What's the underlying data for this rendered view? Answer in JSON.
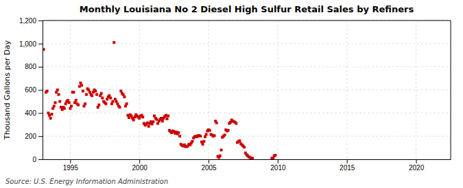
{
  "chart_data": {
    "type": "scatter",
    "title": "Monthly Louisiana No 2 Diesel High Sulfur Retail Sales by Refiners",
    "ylabel": "Thousand Gallons per Day",
    "annotations": [
      "Source: U.S. Energy Information Administration"
    ],
    "color": "#cc0000",
    "marker": "square",
    "grid": true,
    "xlim": [
      1993.0,
      2022.5
    ],
    "ylim": [
      0,
      1200
    ],
    "xticks": [
      1995,
      2000,
      2005,
      2010,
      2015,
      2020
    ],
    "yticks": [
      0,
      200,
      400,
      600,
      800,
      {
        "value": 1000,
        "label": "1,000"
      },
      {
        "value": 1200,
        "label": "1,200"
      }
    ],
    "x": [
      1993.08,
      1993.25,
      1993.33,
      1993.42,
      1993.5,
      1993.58,
      1993.67,
      1993.75,
      1993.83,
      1993.92,
      1994.0,
      1994.08,
      1994.17,
      1994.25,
      1994.33,
      1994.42,
      1994.5,
      1994.58,
      1994.67,
      1994.75,
      1994.83,
      1994.92,
      1995.0,
      1995.08,
      1995.17,
      1995.25,
      1995.33,
      1995.42,
      1995.5,
      1995.58,
      1995.67,
      1995.75,
      1995.83,
      1995.92,
      1996.0,
      1996.08,
      1996.17,
      1996.25,
      1996.33,
      1996.42,
      1996.5,
      1996.58,
      1996.67,
      1996.75,
      1996.83,
      1996.92,
      1997.0,
      1997.08,
      1997.17,
      1997.25,
      1997.33,
      1997.42,
      1997.5,
      1997.58,
      1997.67,
      1997.75,
      1997.83,
      1997.92,
      1998.0,
      1998.08,
      1998.17,
      1998.25,
      1998.33,
      1998.42,
      1998.5,
      1998.58,
      1998.67,
      1998.75,
      1998.83,
      1998.92,
      1999.0,
      1999.08,
      1999.17,
      1999.25,
      1999.33,
      1999.42,
      1999.5,
      1999.58,
      1999.67,
      1999.75,
      1999.83,
      1999.92,
      2000.0,
      2000.08,
      2000.17,
      2000.25,
      2000.33,
      2000.42,
      2000.5,
      2000.58,
      2000.67,
      2000.75,
      2000.83,
      2000.92,
      2001.0,
      2001.08,
      2001.17,
      2001.25,
      2001.33,
      2001.42,
      2001.5,
      2001.58,
      2001.67,
      2001.75,
      2001.83,
      2001.92,
      2002.0,
      2002.08,
      2002.17,
      2002.25,
      2002.33,
      2002.42,
      2002.5,
      2002.58,
      2002.67,
      2002.75,
      2002.83,
      2002.92,
      2003.0,
      2003.08,
      2003.17,
      2003.25,
      2003.33,
      2003.42,
      2003.5,
      2003.58,
      2003.67,
      2003.75,
      2003.83,
      2003.92,
      2004.0,
      2004.08,
      2004.17,
      2004.25,
      2004.33,
      2004.42,
      2004.5,
      2004.58,
      2004.67,
      2004.75,
      2004.83,
      2004.92,
      2005.0,
      2005.08,
      2005.17,
      2005.25,
      2005.33,
      2005.42,
      2005.5,
      2005.58,
      2005.67,
      2005.75,
      2005.83,
      2005.92,
      2006.0,
      2006.08,
      2006.17,
      2006.25,
      2006.33,
      2006.42,
      2006.5,
      2006.58,
      2006.67,
      2006.75,
      2006.83,
      2006.92,
      2007.0,
      2007.08,
      2007.17,
      2007.25,
      2007.33,
      2007.42,
      2007.5,
      2007.58,
      2007.67,
      2007.75,
      2007.83,
      2007.92,
      2008.0,
      2008.08,
      2008.17,
      2009.58,
      2009.67,
      2009.75,
      2009.83
    ],
    "values": [
      950,
      580,
      590,
      400,
      380,
      355,
      390,
      440,
      460,
      490,
      580,
      600,
      560,
      500,
      450,
      430,
      450,
      440,
      480,
      500,
      510,
      490,
      440,
      460,
      580,
      580,
      490,
      510,
      480,
      470,
      630,
      660,
      640,
      590,
      460,
      480,
      560,
      610,
      600,
      580,
      560,
      550,
      580,
      600,
      590,
      560,
      450,
      470,
      550,
      570,
      530,
      500,
      490,
      480,
      520,
      540,
      550,
      530,
      480,
      500,
      1010,
      520,
      500,
      480,
      460,
      450,
      590,
      570,
      560,
      540,
      460,
      480,
      380,
      360,
      385,
      375,
      355,
      340,
      365,
      385,
      375,
      365,
      355,
      375,
      380,
      365,
      310,
      295,
      305,
      315,
      285,
      310,
      325,
      305,
      325,
      375,
      355,
      345,
      310,
      330,
      345,
      355,
      330,
      355,
      370,
      380,
      350,
      375,
      250,
      240,
      230,
      245,
      240,
      225,
      235,
      220,
      230,
      200,
      130,
      120,
      115,
      125,
      110,
      110,
      115,
      130,
      125,
      140,
      155,
      185,
      195,
      200,
      195,
      205,
      205,
      200,
      150,
      130,
      155,
      195,
      215,
      245,
      255,
      250,
      215,
      210,
      200,
      205,
      330,
      315,
      25,
      15,
      30,
      80,
      190,
      200,
      210,
      255,
      245,
      250,
      310,
      320,
      340,
      330,
      325,
      320,
      310,
      145,
      155,
      160,
      135,
      125,
      115,
      105,
      55,
      40,
      30,
      20,
      15,
      10,
      10,
      10,
      10,
      30,
      35
    ]
  }
}
